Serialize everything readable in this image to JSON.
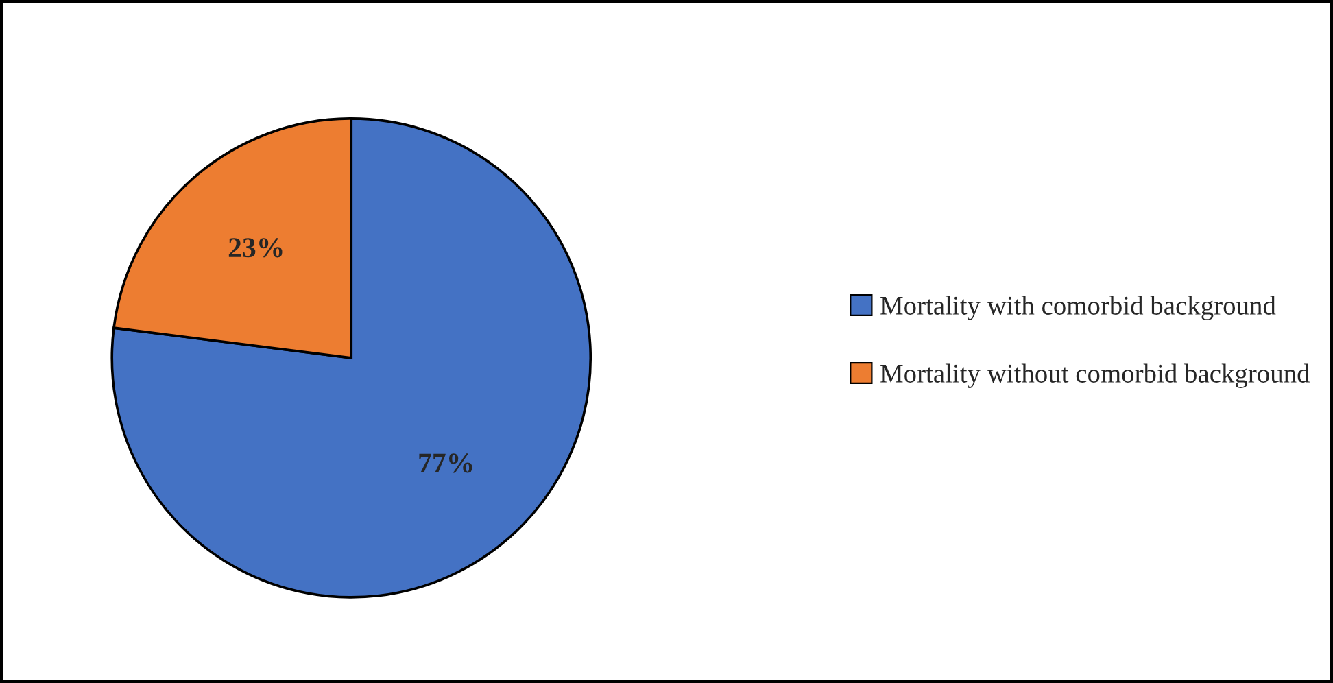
{
  "chart_data": {
    "type": "pie",
    "categories": [
      "Mortality with comorbid background",
      "Mortality without comorbid background"
    ],
    "values": [
      77,
      23
    ],
    "colors": [
      "#4472c4",
      "#ed7d31"
    ],
    "value_labels": [
      "77%",
      "23%"
    ],
    "legend": "right"
  }
}
